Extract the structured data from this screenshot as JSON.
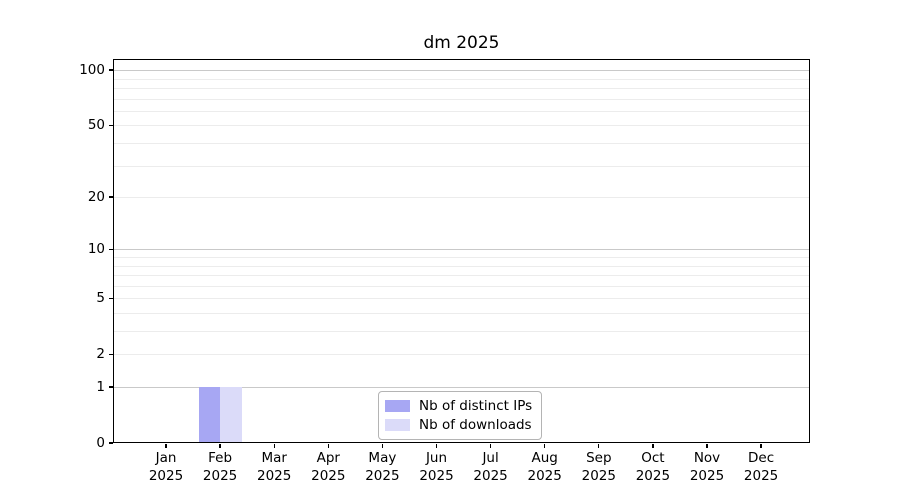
{
  "chart_data": {
    "type": "bar",
    "title": "dm 2025",
    "categories": [
      "Jan 2025",
      "Feb 2025",
      "Mar 2025",
      "Apr 2025",
      "May 2025",
      "Jun 2025",
      "Jul 2025",
      "Aug 2025",
      "Sep 2025",
      "Oct 2025",
      "Nov 2025",
      "Dec 2025"
    ],
    "series": [
      {
        "name": "Nb of distinct IPs",
        "color": "#a7a7f3",
        "values": [
          0,
          1,
          0,
          0,
          0,
          0,
          0,
          0,
          0,
          0,
          0,
          0
        ]
      },
      {
        "name": "Nb of downloads",
        "color": "#dbdbf9",
        "values": [
          0,
          1,
          0,
          0,
          0,
          0,
          0,
          0,
          0,
          0,
          0,
          0
        ]
      }
    ],
    "xlabel": "",
    "ylabel": "",
    "y_ticks": [
      0,
      1,
      2,
      5,
      10,
      20,
      50,
      100
    ],
    "ylim": [
      0,
      115
    ],
    "yscale": "log10(1+y)",
    "grid": "horizontal, minor and major gridlines",
    "legend_position": "bottom-center-inside"
  },
  "colors": {
    "major_grid": "#c9c9c9",
    "minor_grid": "#ececec",
    "spine": "#000000",
    "background": "#ffffff"
  }
}
